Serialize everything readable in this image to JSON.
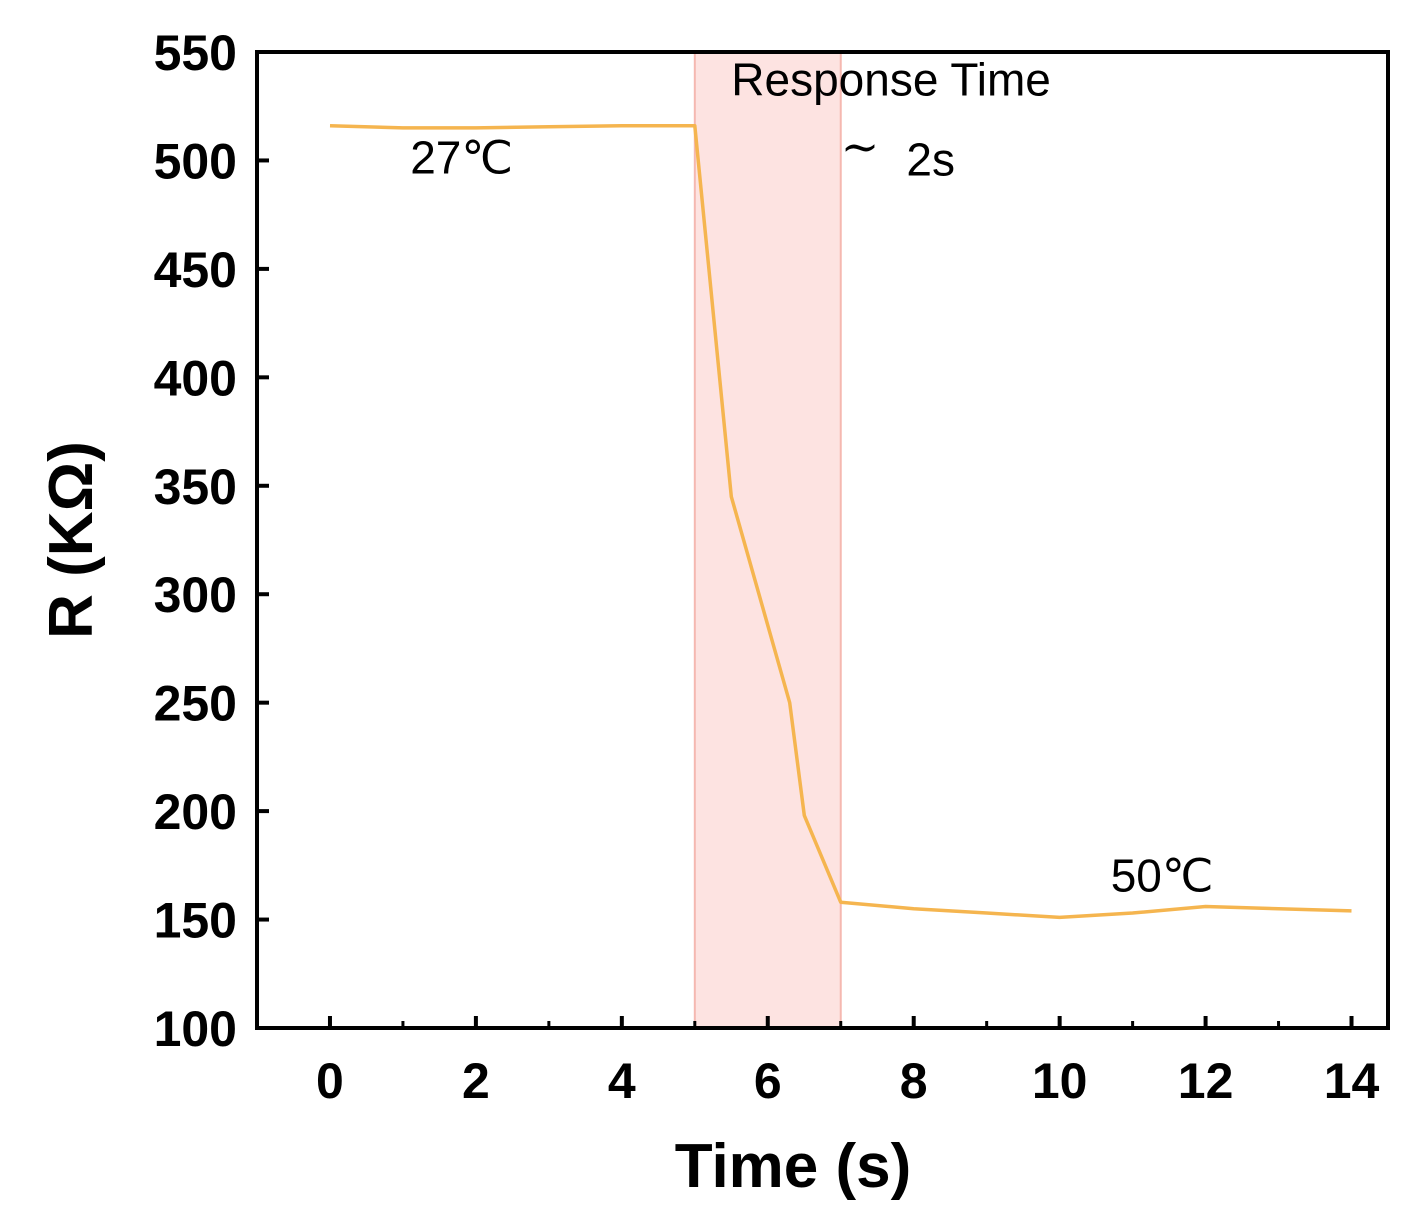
{
  "chart_data": {
    "type": "line",
    "title": "",
    "xlabel": "Time (s)",
    "ylabel": "R (KΩ)",
    "xlim": [
      -1,
      14.5
    ],
    "ylim": [
      100,
      550
    ],
    "xticks": [
      0,
      2,
      4,
      6,
      8,
      10,
      12,
      14
    ],
    "yticks": [
      100,
      150,
      200,
      250,
      300,
      350,
      400,
      450,
      500,
      550
    ],
    "grid": false,
    "series": [
      {
        "color": "#f5b54f",
        "x": [
          0,
          1,
          2,
          3,
          4,
          5,
          5.5,
          6.3,
          6.5,
          7,
          8,
          9,
          10,
          11,
          12,
          13,
          14
        ],
        "y": [
          516,
          515,
          515,
          515.5,
          516,
          516,
          345,
          250,
          198,
          158,
          155,
          153,
          151,
          153,
          156,
          155,
          154
        ]
      }
    ],
    "highlight_band": {
      "x_start": 5,
      "x_end": 7,
      "color": "#fde3e1"
    },
    "annotations": [
      {
        "id": "response",
        "text": "Response Time",
        "x": 5.5,
        "y": 530
      },
      {
        "id": "tilde",
        "text": "~",
        "x": 7.0,
        "y": 499
      },
      {
        "id": "dur",
        "text": "2s",
        "x": 7.9,
        "y": 493
      },
      {
        "id": "t27",
        "text": "27℃",
        "x": 1.1,
        "y": 494
      },
      {
        "id": "t50",
        "text": "50℃",
        "x": 10.7,
        "y": 163
      }
    ]
  }
}
